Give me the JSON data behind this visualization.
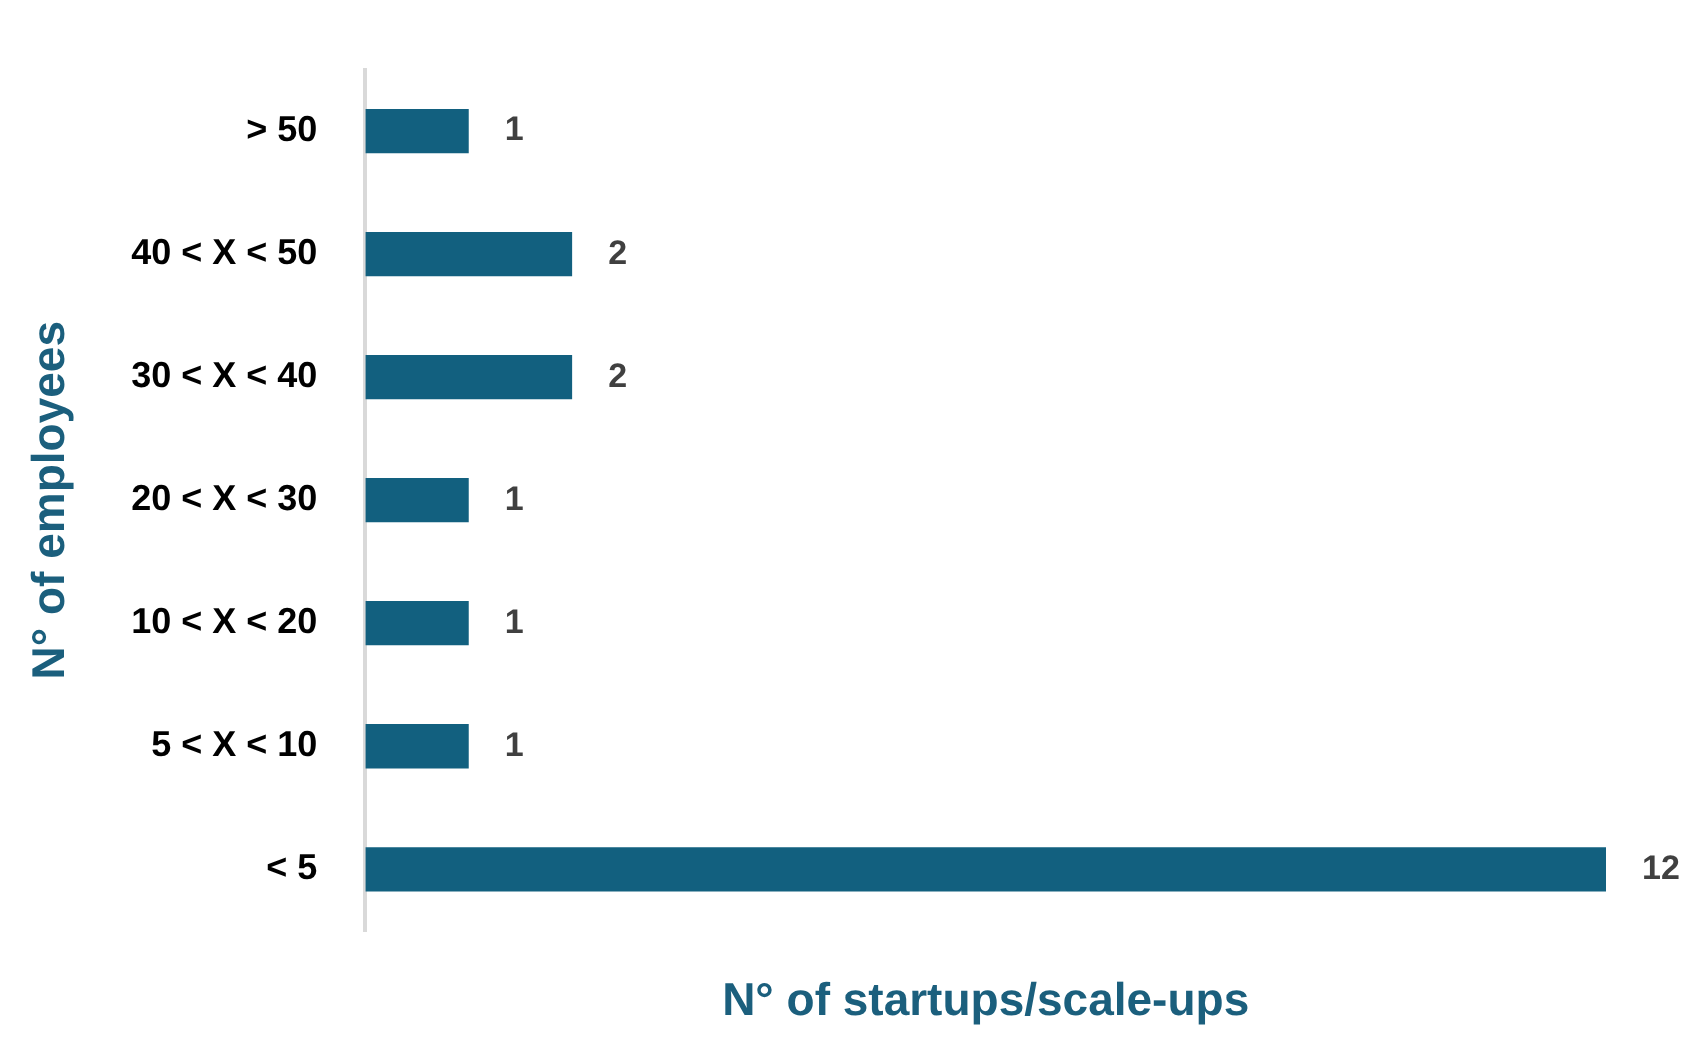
{
  "chart_data": {
    "type": "bar",
    "orientation": "horizontal",
    "xlabel": "N° of startups/scale-ups",
    "ylabel": "N° of employees",
    "categories": [
      "> 50",
      "40 < X < 50",
      "30 < X < 40",
      "20 < X < 30",
      "10 < X < 20",
      "5 < X < 10",
      "< 5"
    ],
    "values": [
      1,
      2,
      2,
      1,
      1,
      1,
      12
    ],
    "color": "#12607f",
    "data_labels": true,
    "grid": false,
    "legend": false,
    "tick_labels": "y"
  }
}
